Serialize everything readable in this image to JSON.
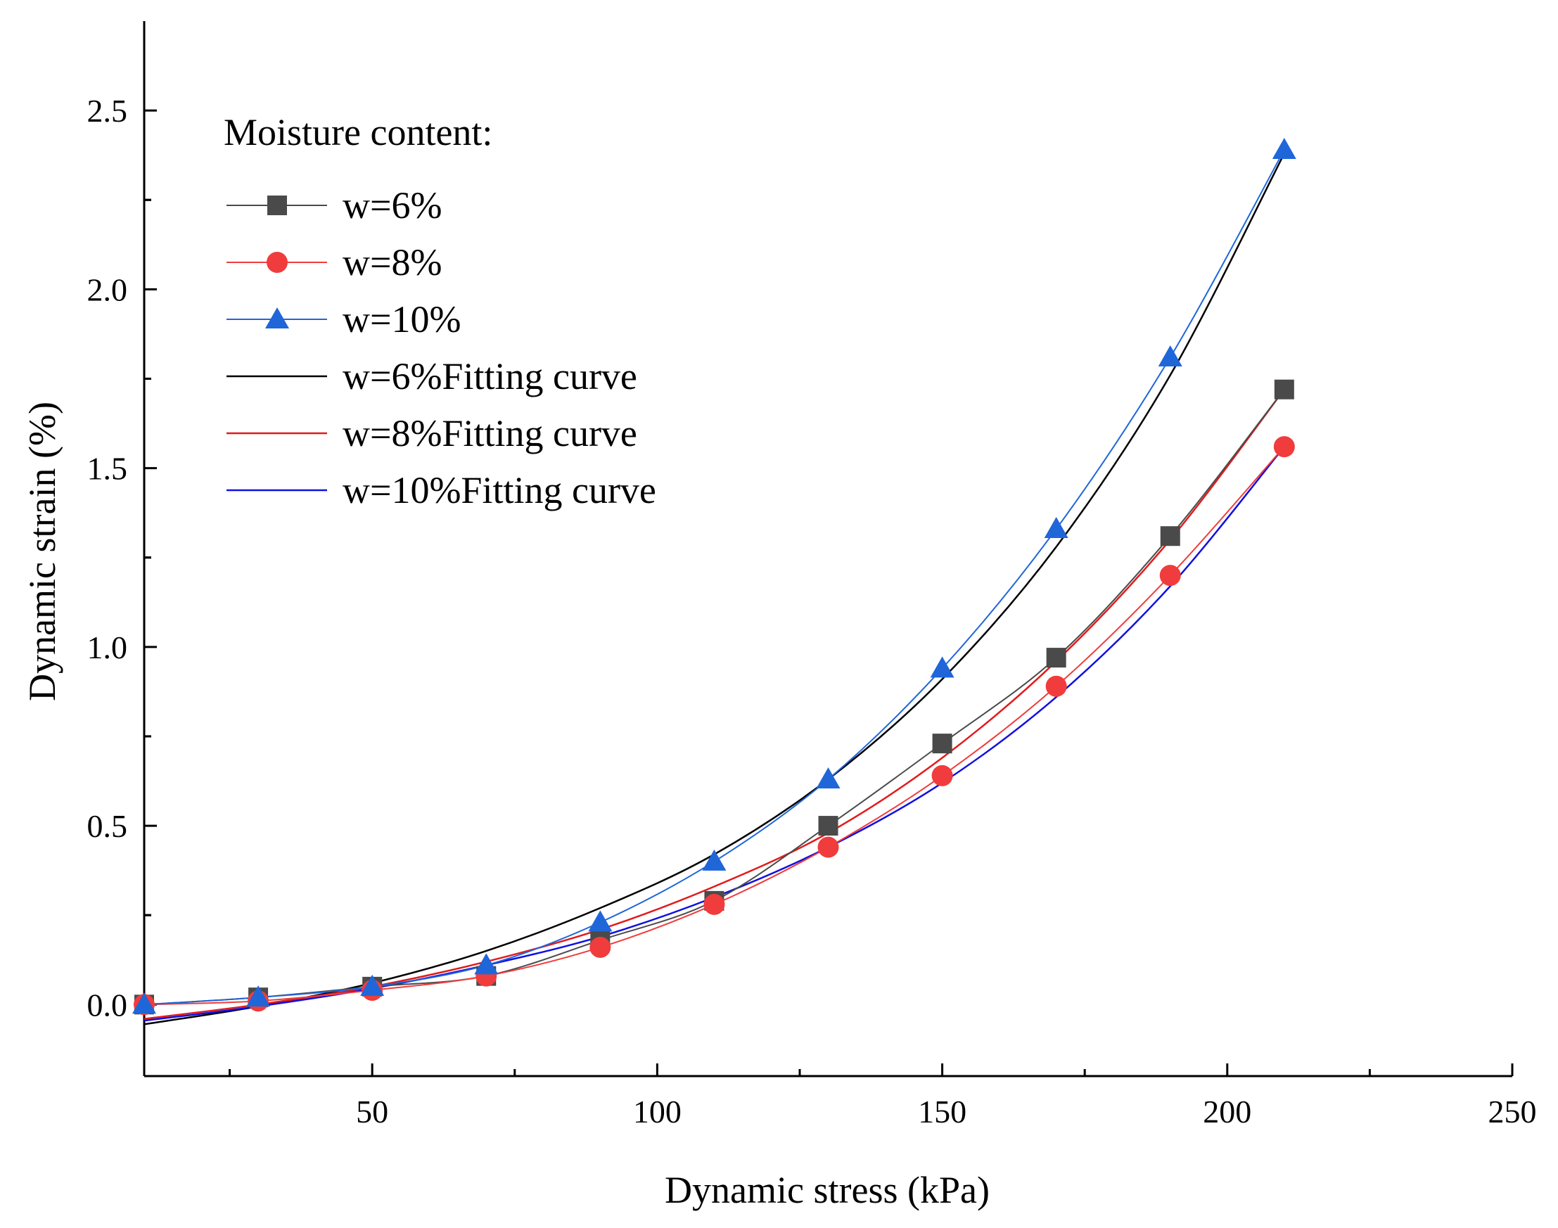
{
  "chart_data": {
    "type": "scatter",
    "title": "",
    "xlabel": "Dynamic stress (kPa)",
    "ylabel": "Dynamic strain (%)",
    "xlim": [
      10,
      250
    ],
    "ylim": [
      -0.2,
      2.75
    ],
    "x_ticks": [
      50,
      100,
      150,
      200,
      250
    ],
    "x_minor_ticks": [
      25,
      75,
      125,
      175,
      225
    ],
    "y_ticks": [
      0.0,
      0.5,
      1.0,
      1.5,
      2.0,
      2.5
    ],
    "y_tick_labels": [
      "0.0",
      "0.5",
      "1.0",
      "1.5",
      "2.0",
      "2.5"
    ],
    "x_tick_labels": [
      "50",
      "100",
      "150",
      "200",
      "250"
    ],
    "grid": false,
    "legend_title": "Moisture content:",
    "legend_position": "top-left",
    "series": [
      {
        "name": "w=6%",
        "marker": "square",
        "color": "#4a4a4a",
        "x": [
          10,
          30,
          50,
          70,
          90,
          110,
          130,
          150,
          170,
          190,
          210
        ],
        "y": [
          0.0,
          0.02,
          0.05,
          0.08,
          0.18,
          0.29,
          0.5,
          0.73,
          0.97,
          1.31,
          1.72
        ]
      },
      {
        "name": "w=8%",
        "marker": "circle",
        "color": "#f03c3c",
        "x": [
          10,
          30,
          50,
          70,
          90,
          110,
          130,
          150,
          170,
          190,
          210
        ],
        "y": [
          0.0,
          0.01,
          0.04,
          0.08,
          0.16,
          0.28,
          0.44,
          0.64,
          0.89,
          1.2,
          1.56
        ]
      },
      {
        "name": "w=10%",
        "marker": "triangle",
        "color": "#1f66d9",
        "x": [
          10,
          30,
          50,
          70,
          90,
          110,
          130,
          150,
          170,
          190,
          210
        ],
        "y": [
          0.0,
          0.02,
          0.05,
          0.11,
          0.23,
          0.4,
          0.63,
          0.94,
          1.33,
          1.81,
          2.39
        ]
      }
    ],
    "fits": [
      {
        "name": "w=6%Fitting curve",
        "color": "#000000",
        "x": [
          10,
          30,
          50,
          70,
          90,
          110,
          130,
          150,
          170,
          190,
          210
        ],
        "y": [
          -0.055,
          -0.005,
          0.06,
          0.15,
          0.27,
          0.42,
          0.63,
          0.91,
          1.28,
          1.76,
          2.38
        ]
      },
      {
        "name": "w=8%Fitting curve",
        "color": "#e21b1b",
        "x": [
          10,
          30,
          50,
          70,
          90,
          110,
          130,
          150,
          170,
          190,
          210
        ],
        "y": [
          -0.04,
          0.0,
          0.05,
          0.12,
          0.21,
          0.33,
          0.48,
          0.69,
          0.96,
          1.3,
          1.72
        ]
      },
      {
        "name": "w=10%Fitting curve",
        "color": "#1010e0",
        "x": [
          10,
          30,
          50,
          70,
          90,
          110,
          130,
          150,
          170,
          190,
          210
        ],
        "y": [
          -0.045,
          -0.005,
          0.045,
          0.11,
          0.19,
          0.3,
          0.44,
          0.62,
          0.86,
          1.17,
          1.56
        ]
      }
    ]
  }
}
